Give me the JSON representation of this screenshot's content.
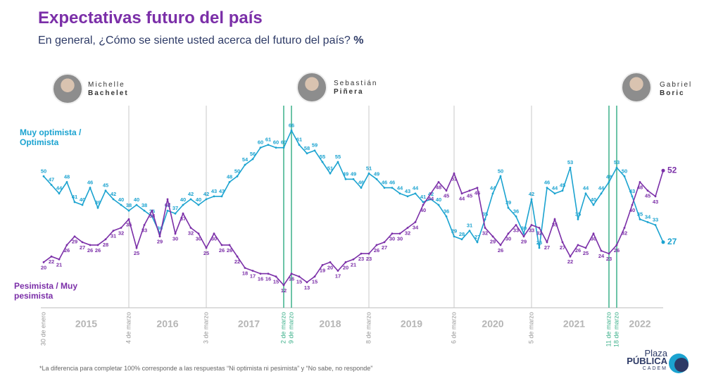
{
  "chart_data": {
    "type": "line",
    "title": "Expectativas futuro del país",
    "subtitle": "En general, ¿Cómo se siente usted acerca del futuro del país?",
    "unit": "%",
    "categories": [
      "30 de enero",
      null,
      null,
      null,
      null,
      null,
      null,
      null,
      null,
      null,
      null,
      "4 de marzo",
      null,
      null,
      null,
      null,
      null,
      null,
      null,
      null,
      null,
      "3 de marzo",
      null,
      null,
      null,
      null,
      null,
      null,
      null,
      null,
      null,
      "2 de marzo",
      "9 de marzo",
      null,
      null,
      null,
      null,
      null,
      null,
      null,
      null,
      null,
      "8 de marzo",
      null,
      null,
      null,
      null,
      null,
      null,
      null,
      null,
      null,
      null,
      "6 de marzo",
      null,
      null,
      null,
      null,
      null,
      null,
      null,
      null,
      null,
      "5 de marzo",
      null,
      null,
      null,
      null,
      null,
      null,
      null,
      null,
      null,
      "11 de marzo",
      "18 de marzo",
      null,
      null,
      null,
      null,
      null,
      null
    ],
    "year_labels": [
      "2015",
      "2016",
      "2017",
      "2018",
      "2019",
      "2020",
      "2021",
      "2022"
    ],
    "ylim": [
      10,
      70
    ],
    "series": [
      {
        "name": "Muy optimista / Optimista",
        "color": "#1ba3d0",
        "values": [
          50,
          47,
          44,
          48,
          41,
          40,
          46,
          39,
          45,
          42,
          40,
          38,
          40,
          38,
          36,
          30,
          38,
          37,
          40,
          42,
          40,
          42,
          43,
          43,
          48,
          50,
          54,
          56,
          60,
          61,
          60,
          60,
          66,
          61,
          58,
          59,
          55,
          51,
          55,
          49,
          49,
          46,
          51,
          49,
          46,
          46,
          44,
          43,
          44,
          41,
          42,
          40,
          36,
          29,
          28,
          31,
          27,
          35,
          44,
          50,
          39,
          36,
          30,
          42,
          25,
          46,
          44,
          45,
          53,
          35,
          44,
          40,
          44,
          48,
          53,
          50,
          43,
          35,
          34,
          33,
          27
        ]
      },
      {
        "name": "Pesimista / Muy pesimista",
        "color": "#7b2fa8",
        "values": [
          20,
          22,
          21,
          26,
          29,
          27,
          26,
          26,
          28,
          31,
          32,
          35,
          25,
          33,
          38,
          29,
          42,
          30,
          37,
          32,
          30,
          25,
          30,
          26,
          26,
          22,
          18,
          17,
          16,
          16,
          15,
          12,
          16,
          15,
          13,
          15,
          19,
          20,
          17,
          20,
          21,
          23,
          23,
          26,
          27,
          30,
          30,
          32,
          34,
          40,
          44,
          48,
          45,
          51,
          44,
          45,
          46,
          32,
          29,
          26,
          30,
          33,
          29,
          33,
          32,
          27,
          35,
          27,
          22,
          26,
          25,
          30,
          24,
          23,
          26,
          32,
          40,
          48,
          45,
          43,
          52
        ]
      }
    ]
  },
  "presidents": [
    {
      "first": "Michelle",
      "last": "Bachelet"
    },
    {
      "first": "Sebastián",
      "last": "Piñera"
    },
    {
      "first": "Gabriel",
      "last": "Boric"
    }
  ],
  "footnote": "*La diferencia para completar 100% corresponde a las respuestas “Ni optimista ni pesimista” y “No sabe, no responde”",
  "logo": [
    "Plaza",
    "PÚBLICA",
    "CADEM"
  ]
}
